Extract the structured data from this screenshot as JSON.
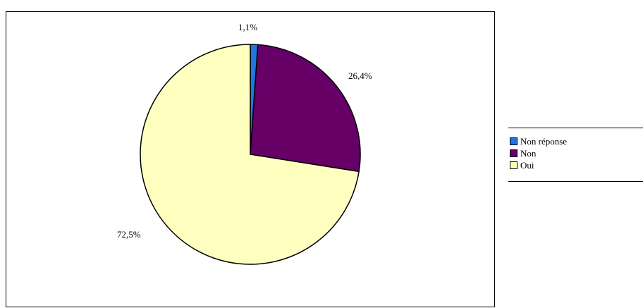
{
  "chart_data": {
    "type": "pie",
    "slices": [
      {
        "name": "Non réponse",
        "value": 1.1,
        "label": "1,1%",
        "color": "#1f77e0"
      },
      {
        "name": "Non",
        "value": 26.4,
        "label": "26,4%",
        "color": "#660066"
      },
      {
        "name": "Oui",
        "value": 72.5,
        "label": "72,5%",
        "color": "#ffffc0"
      }
    ],
    "legend": {
      "placement": "right",
      "items": [
        {
          "label": "Non réponse",
          "color": "#1f77e0"
        },
        {
          "label": "Non",
          "color": "#660066"
        },
        {
          "label": "Oui",
          "color": "#ffffc0"
        }
      ]
    }
  }
}
